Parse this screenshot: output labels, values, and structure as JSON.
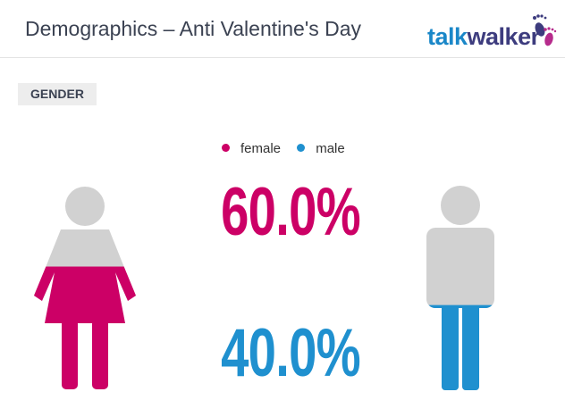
{
  "header": {
    "title": "Demographics – Anti Valentine's Day",
    "logo_part1": "talk",
    "logo_part2": "walker"
  },
  "section": {
    "tag": "GENDER"
  },
  "colors": {
    "female": "#cc0066",
    "male": "#1f90cf",
    "base": "#d1d1d1"
  },
  "chart_data": {
    "type": "pictograph",
    "legend_position": "top-center",
    "series": [
      {
        "name": "female",
        "value": 60.0,
        "label": "60.0%",
        "color": "#cc0066"
      },
      {
        "name": "male",
        "value": 40.0,
        "label": "40.0%",
        "color": "#1f90cf"
      }
    ]
  }
}
